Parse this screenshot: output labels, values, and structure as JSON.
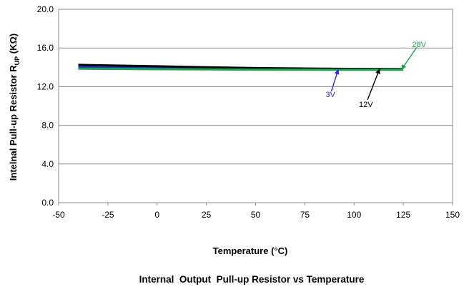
{
  "chart_data": {
    "type": "line",
    "title": "Internal  Output  Pull-up Resistor vs Temperature",
    "xlabel": "Temperature (°C)",
    "ylabel_main": "Intelnal Pull-up Resistor R",
    "ylabel_sub": "UP",
    "ylabel_unit": " (KΩ)",
    "xlim": [
      -50,
      150
    ],
    "ylim": [
      0,
      20
    ],
    "x_ticks": [
      -50,
      -25,
      0,
      25,
      50,
      75,
      100,
      125,
      150
    ],
    "y_ticks": [
      0,
      4,
      8,
      12,
      16,
      20
    ],
    "y_tick_labels": [
      "0.0",
      "4.0",
      "8.0",
      "12.0",
      "16.0",
      "20.0"
    ],
    "grid": "horizontal",
    "series": [
      {
        "name": "3V",
        "color": "#2a2ae0",
        "x": [
          -40,
          0,
          25,
          50,
          85,
          125
        ],
        "values": [
          14.05,
          13.95,
          13.9,
          13.85,
          13.82,
          13.82
        ]
      },
      {
        "name": "12V",
        "color": "#000000",
        "x": [
          -40,
          0,
          25,
          50,
          85,
          125
        ],
        "values": [
          14.25,
          14.1,
          14.0,
          13.92,
          13.85,
          13.8
        ]
      },
      {
        "name": "28V",
        "color": "#1aa64a",
        "x": [
          -40,
          0,
          25,
          50,
          85,
          125
        ],
        "values": [
          13.85,
          13.8,
          13.78,
          13.76,
          13.75,
          13.75
        ]
      }
    ],
    "annotations": [
      {
        "text": "3V",
        "color": "#2a2ae0",
        "label_x": 88,
        "label_y": 11.2,
        "target_x": 92,
        "target_y": 13.8
      },
      {
        "text": "12V",
        "color": "#000000",
        "label_x": 106,
        "label_y": 10.2,
        "target_x": 113,
        "target_y": 13.85
      },
      {
        "text": "28V",
        "color": "#1aa64a",
        "label_x": 133,
        "label_y": 16.4,
        "target_x": 124,
        "target_y": 13.75
      }
    ]
  }
}
